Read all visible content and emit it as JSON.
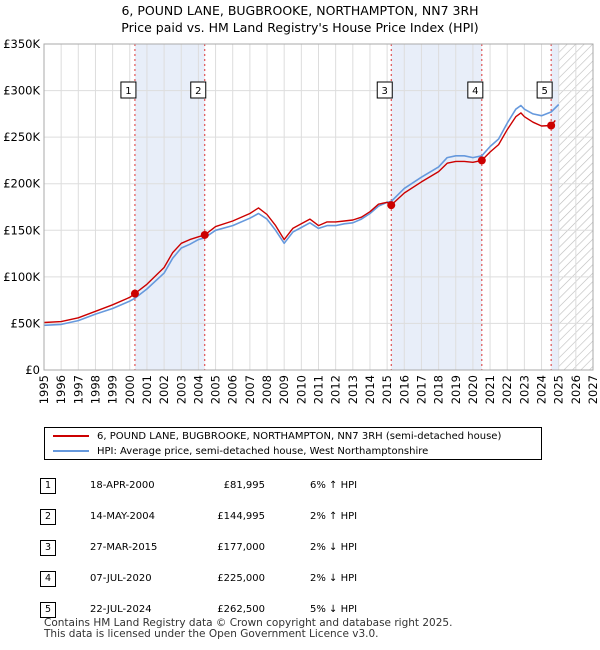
{
  "title": {
    "line1": "6, POUND LANE, BUGBROOKE, NORTHAMPTON, NN7 3RH",
    "line2": "Price paid vs. HM Land Registry's House Price Index (HPI)"
  },
  "legend": {
    "red_label": "6, POUND LANE, BUGBROOKE, NORTHAMPTON, NN7 3RH (semi-detached house)",
    "blue_label": "HPI: Average price, semi-detached house, West Northamptonshire"
  },
  "colors": {
    "red": "#cc0000",
    "blue": "#6699dd",
    "shade": "#e8eef9",
    "marker_line": "#dd3333"
  },
  "sales": [
    {
      "num": "1",
      "date": "18-APR-2000",
      "price": "£81,995",
      "hpi": "6% ↑ HPI"
    },
    {
      "num": "2",
      "date": "14-MAY-2004",
      "price": "£144,995",
      "hpi": "2% ↑ HPI"
    },
    {
      "num": "3",
      "date": "27-MAR-2015",
      "price": "£177,000",
      "hpi": "2% ↓ HPI"
    },
    {
      "num": "4",
      "date": "07-JUL-2020",
      "price": "£225,000",
      "hpi": "2% ↓ HPI"
    },
    {
      "num": "5",
      "date": "22-JUL-2024",
      "price": "£262,500",
      "hpi": "5% ↓ HPI"
    }
  ],
  "footer": {
    "line1": "Contains HM Land Registry data © Crown copyright and database right 2025.",
    "line2": "This data is licensed under the Open Government Licence v3.0."
  },
  "chart_data": {
    "type": "line",
    "xlim": [
      1995,
      2027
    ],
    "ylim": [
      0,
      350000
    ],
    "yticks": [
      0,
      50000,
      100000,
      150000,
      200000,
      250000,
      300000,
      350000
    ],
    "ytick_labels": [
      "£0",
      "£50K",
      "£100K",
      "£150K",
      "£200K",
      "£250K",
      "£300K",
      "£350K"
    ],
    "xticks": [
      1995,
      1996,
      1997,
      1998,
      1999,
      2000,
      2001,
      2002,
      2003,
      2004,
      2005,
      2006,
      2007,
      2008,
      2009,
      2010,
      2011,
      2012,
      2013,
      2014,
      2015,
      2016,
      2017,
      2018,
      2019,
      2020,
      2021,
      2022,
      2023,
      2024,
      2025,
      2026,
      2027
    ],
    "hatch_from": 2025.0,
    "shaded_ranges": [
      [
        2000.3,
        2004.37
      ],
      [
        2015.24,
        2020.52
      ],
      [
        2024.56,
        2025.0
      ]
    ],
    "sale_points": [
      {
        "label": "1",
        "x": 2000.3,
        "y": 81995
      },
      {
        "label": "2",
        "x": 2004.37,
        "y": 144995
      },
      {
        "label": "3",
        "x": 2015.24,
        "y": 177000
      },
      {
        "label": "4",
        "x": 2020.52,
        "y": 225000
      },
      {
        "label": "5",
        "x": 2024.56,
        "y": 262500
      }
    ],
    "series": [
      {
        "name": "HPI: Average price, semi-detached house, West Northamptonshire",
        "color": "#6699dd",
        "points": [
          [
            1995.0,
            48000
          ],
          [
            1996.0,
            49000
          ],
          [
            1997.0,
            53000
          ],
          [
            1998.0,
            60000
          ],
          [
            1999.0,
            66000
          ],
          [
            2000.0,
            74000
          ],
          [
            2000.3,
            77000
          ],
          [
            2001.0,
            87000
          ],
          [
            2002.0,
            104000
          ],
          [
            2002.5,
            120000
          ],
          [
            2003.0,
            131000
          ],
          [
            2003.5,
            135000
          ],
          [
            2004.0,
            140000
          ],
          [
            2004.37,
            142000
          ],
          [
            2005.0,
            150000
          ],
          [
            2006.0,
            155000
          ],
          [
            2007.0,
            163000
          ],
          [
            2007.5,
            168000
          ],
          [
            2008.0,
            162000
          ],
          [
            2008.5,
            150000
          ],
          [
            2009.0,
            136000
          ],
          [
            2009.5,
            148000
          ],
          [
            2010.0,
            153000
          ],
          [
            2010.5,
            158000
          ],
          [
            2011.0,
            152000
          ],
          [
            2011.5,
            155000
          ],
          [
            2012.0,
            155000
          ],
          [
            2012.5,
            157000
          ],
          [
            2013.0,
            158000
          ],
          [
            2013.5,
            162000
          ],
          [
            2014.0,
            168000
          ],
          [
            2014.5,
            176000
          ],
          [
            2015.0,
            180000
          ],
          [
            2015.24,
            181000
          ],
          [
            2016.0,
            195000
          ],
          [
            2017.0,
            207000
          ],
          [
            2018.0,
            218000
          ],
          [
            2018.5,
            228000
          ],
          [
            2019.0,
            230000
          ],
          [
            2019.5,
            230000
          ],
          [
            2020.0,
            228000
          ],
          [
            2020.52,
            230000
          ],
          [
            2021.0,
            240000
          ],
          [
            2021.5,
            248000
          ],
          [
            2022.0,
            265000
          ],
          [
            2022.5,
            280000
          ],
          [
            2022.8,
            284000
          ],
          [
            2023.0,
            280000
          ],
          [
            2023.5,
            275000
          ],
          [
            2024.0,
            273000
          ],
          [
            2024.56,
            277000
          ],
          [
            2025.0,
            285000
          ]
        ]
      },
      {
        "name": "6, POUND LANE, BUGBROOKE, NORTHAMPTON, NN7 3RH (semi-detached house)",
        "color": "#cc0000",
        "points": [
          [
            1995.0,
            51000
          ],
          [
            1996.0,
            52000
          ],
          [
            1997.0,
            56000
          ],
          [
            1998.0,
            63000
          ],
          [
            1999.0,
            70000
          ],
          [
            2000.0,
            78000
          ],
          [
            2000.3,
            81995
          ],
          [
            2001.0,
            92000
          ],
          [
            2002.0,
            110000
          ],
          [
            2002.5,
            126000
          ],
          [
            2003.0,
            136000
          ],
          [
            2003.5,
            140000
          ],
          [
            2004.0,
            143000
          ],
          [
            2004.37,
            144995
          ],
          [
            2005.0,
            154000
          ],
          [
            2006.0,
            160000
          ],
          [
            2007.0,
            168000
          ],
          [
            2007.5,
            174000
          ],
          [
            2008.0,
            167000
          ],
          [
            2008.5,
            155000
          ],
          [
            2009.0,
            140000
          ],
          [
            2009.5,
            152000
          ],
          [
            2010.0,
            157000
          ],
          [
            2010.5,
            162000
          ],
          [
            2011.0,
            155000
          ],
          [
            2011.5,
            159000
          ],
          [
            2012.0,
            159000
          ],
          [
            2012.5,
            160000
          ],
          [
            2013.0,
            161000
          ],
          [
            2013.5,
            164000
          ],
          [
            2014.0,
            170000
          ],
          [
            2014.5,
            178000
          ],
          [
            2015.0,
            180000
          ],
          [
            2015.24,
            177000
          ],
          [
            2016.0,
            190000
          ],
          [
            2017.0,
            202000
          ],
          [
            2018.0,
            213000
          ],
          [
            2018.5,
            222000
          ],
          [
            2019.0,
            224000
          ],
          [
            2019.5,
            224000
          ],
          [
            2020.0,
            223000
          ],
          [
            2020.52,
            225000
          ],
          [
            2021.0,
            234000
          ],
          [
            2021.5,
            242000
          ],
          [
            2022.0,
            258000
          ],
          [
            2022.5,
            272000
          ],
          [
            2022.8,
            276000
          ],
          [
            2023.0,
            272000
          ],
          [
            2023.5,
            266000
          ],
          [
            2024.0,
            262000
          ],
          [
            2024.56,
            262500
          ],
          [
            2024.8,
            268000
          ]
        ]
      }
    ]
  }
}
